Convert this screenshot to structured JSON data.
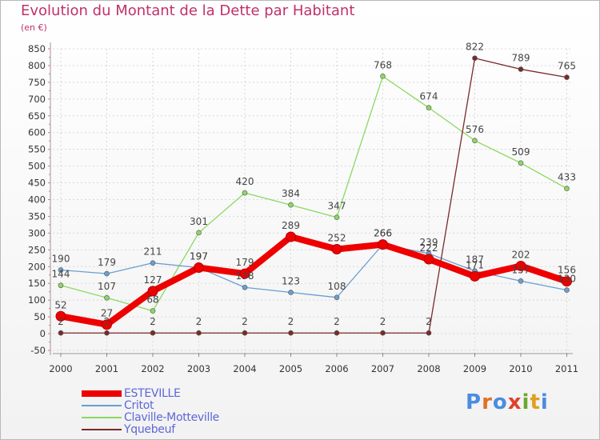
{
  "title": "Evolution du Montant de la Dette par Habitant",
  "subtitle": "(en €)",
  "logo": {
    "text": "Proxiti",
    "letter_colors": [
      "#4a8de0",
      "#e0702a",
      "#4a8de0",
      "#e0402a",
      "#6aa830",
      "#e0a020",
      "#4a8de0"
    ]
  },
  "chart_data": {
    "type": "line",
    "x": [
      "2000",
      "2001",
      "2002",
      "2003",
      "2004",
      "2005",
      "2006",
      "2007",
      "2008",
      "2009",
      "2010",
      "2011"
    ],
    "ylim": [
      -50,
      850
    ],
    "y_ticks": [
      "850",
      "800",
      "750",
      "700",
      "650",
      "600",
      "550",
      "500",
      "450",
      "400",
      "350",
      "300",
      "250",
      "200",
      "150",
      "100",
      "50",
      "0",
      "-50"
    ],
    "grid": true,
    "legend_position": "bottom-left",
    "series": [
      {
        "name": "ESTEVILLE",
        "color": "#ee0000",
        "values": [
          52,
          27,
          127,
          197,
          179,
          289,
          252,
          266,
          222,
          171,
          202,
          156
        ],
        "labels": [
          "52",
          "27",
          "127",
          "197",
          "179",
          "289",
          "252",
          "266",
          "222",
          "171",
          "202",
          "156"
        ]
      },
      {
        "name": "Critot",
        "color": "#6a9fd0",
        "values": [
          190,
          179,
          211,
          197,
          138,
          123,
          108,
          266,
          239,
          187,
          157,
          130
        ],
        "labels": [
          "190",
          "179",
          "211",
          "197",
          "138",
          "123",
          "108",
          "266",
          "239",
          "187",
          "157",
          "130"
        ]
      },
      {
        "name": "Claville-Motteville",
        "color": "#8cd860",
        "values": [
          144,
          107,
          68,
          301,
          420,
          384,
          347,
          768,
          674,
          576,
          509,
          433
        ],
        "labels": [
          "144",
          "107",
          "68",
          "301",
          "420",
          "384",
          "347",
          "768",
          "674",
          "576",
          "509",
          "433"
        ]
      },
      {
        "name": "Yquebeuf",
        "color": "#7a2a2a",
        "values": [
          2,
          2,
          2,
          2,
          2,
          2,
          2,
          2,
          2,
          822,
          789,
          765
        ],
        "labels": [
          "2",
          "2",
          "2",
          "2",
          "2",
          "2",
          "2",
          "2",
          "2",
          "822",
          "789",
          "765"
        ]
      }
    ]
  }
}
